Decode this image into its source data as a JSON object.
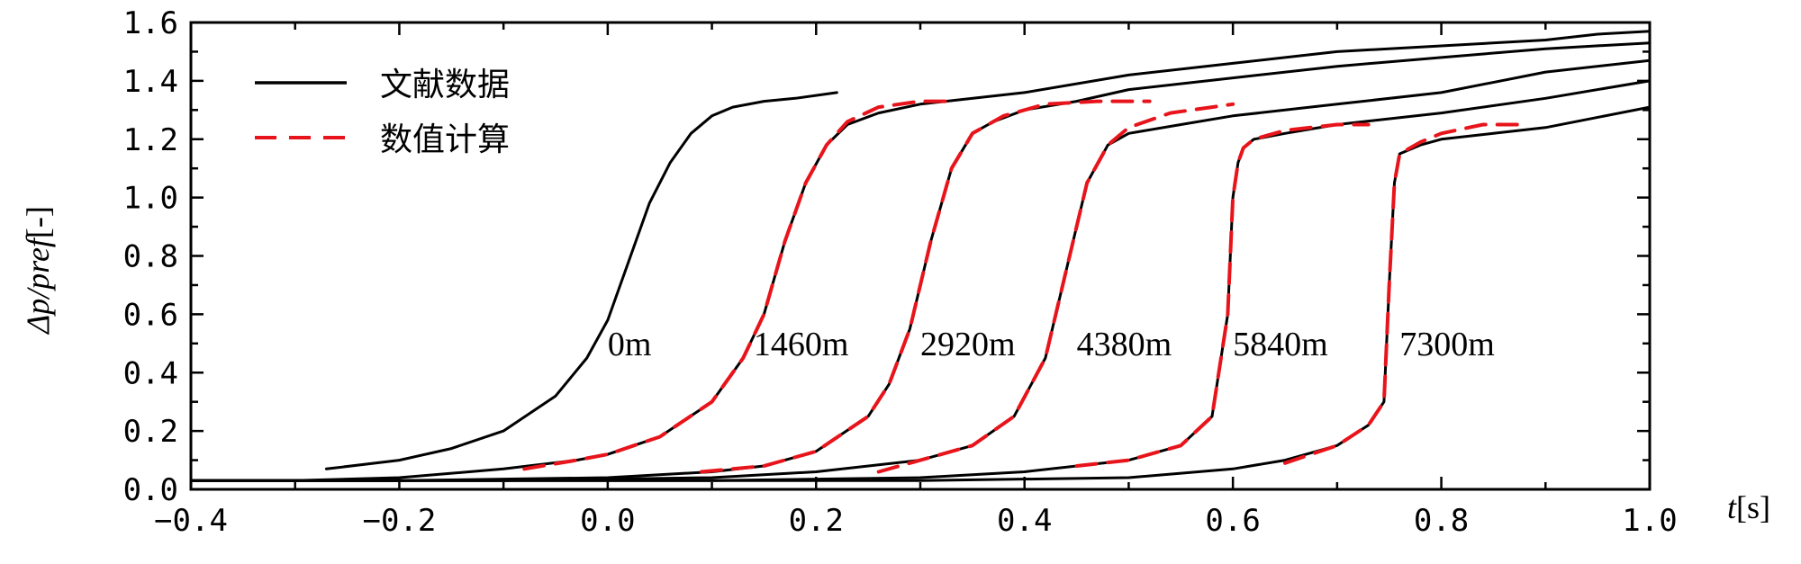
{
  "chart_data": {
    "type": "line",
    "title": "",
    "xlabel_var": "t",
    "xlabel_unit": "[s]",
    "ylabel_delta": "Δ",
    "ylabel_var": "p/pref",
    "ylabel_unit": "[-]",
    "xlim": [
      -0.4,
      1.0
    ],
    "ylim": [
      0.0,
      1.6
    ],
    "xticks": [
      -0.4,
      -0.2,
      0.0,
      0.2,
      0.4,
      0.6,
      0.8,
      1.0
    ],
    "xtick_labels": [
      "−0.4",
      "−0.2",
      "0.0",
      "0.2",
      "0.4",
      "0.6",
      "0.8",
      "1.0"
    ],
    "yticks": [
      0.0,
      0.2,
      0.4,
      0.6,
      0.8,
      1.0,
      1.2,
      1.4,
      1.6
    ],
    "ytick_labels": [
      "0.0",
      "0.2",
      "0.4",
      "0.6",
      "0.8",
      "1.0",
      "1.2",
      "1.4",
      "1.6"
    ],
    "legend_position": "top-left",
    "legend": [
      {
        "label": "文献数据",
        "style": "solid",
        "color": "#000000"
      },
      {
        "label": "数值计算",
        "style": "dashed",
        "color": "#e8141b"
      }
    ],
    "series": [
      {
        "name": "0m 文献数据",
        "style": "solid",
        "color": "#000000",
        "x": [
          -0.27,
          -0.2,
          -0.15,
          -0.1,
          -0.05,
          -0.02,
          0.0,
          0.02,
          0.04,
          0.06,
          0.08,
          0.1,
          0.12,
          0.15,
          0.18,
          0.22
        ],
        "y": [
          0.07,
          0.1,
          0.14,
          0.2,
          0.32,
          0.45,
          0.58,
          0.78,
          0.98,
          1.12,
          1.22,
          1.28,
          1.31,
          1.33,
          1.34,
          1.36
        ]
      },
      {
        "name": "1460m 文献数据",
        "style": "solid",
        "color": "#000000",
        "x": [
          -0.4,
          -0.3,
          -0.2,
          -0.1,
          -0.03,
          0.0,
          0.05,
          0.1,
          0.13,
          0.15,
          0.17,
          0.19,
          0.21,
          0.23,
          0.26,
          0.3,
          0.4,
          0.5,
          0.6,
          0.7,
          0.8,
          0.9,
          0.95,
          1.0
        ],
        "y": [
          0.03,
          0.03,
          0.04,
          0.07,
          0.1,
          0.12,
          0.18,
          0.3,
          0.45,
          0.6,
          0.85,
          1.05,
          1.18,
          1.25,
          1.29,
          1.32,
          1.36,
          1.42,
          1.46,
          1.5,
          1.52,
          1.54,
          1.56,
          1.57
        ]
      },
      {
        "name": "2920m 文献数据",
        "style": "solid",
        "color": "#000000",
        "x": [
          -0.4,
          -0.2,
          0.0,
          0.1,
          0.15,
          0.2,
          0.25,
          0.27,
          0.29,
          0.31,
          0.33,
          0.35,
          0.37,
          0.4,
          0.45,
          0.5,
          0.6,
          0.7,
          0.8,
          0.9,
          1.0
        ],
        "y": [
          0.03,
          0.03,
          0.04,
          0.06,
          0.08,
          0.13,
          0.25,
          0.36,
          0.55,
          0.85,
          1.1,
          1.22,
          1.26,
          1.3,
          1.33,
          1.37,
          1.41,
          1.45,
          1.48,
          1.51,
          1.53
        ]
      },
      {
        "name": "4380m 文献数据",
        "style": "solid",
        "color": "#000000",
        "x": [
          -0.4,
          -0.1,
          0.1,
          0.2,
          0.3,
          0.35,
          0.39,
          0.42,
          0.44,
          0.46,
          0.48,
          0.5,
          0.55,
          0.6,
          0.7,
          0.8,
          0.9,
          1.0
        ],
        "y": [
          0.03,
          0.03,
          0.04,
          0.06,
          0.1,
          0.15,
          0.25,
          0.45,
          0.75,
          1.05,
          1.18,
          1.22,
          1.25,
          1.28,
          1.32,
          1.36,
          1.43,
          1.47
        ]
      },
      {
        "name": "5840m 文献数据",
        "style": "solid",
        "color": "#000000",
        "x": [
          -0.4,
          0.1,
          0.3,
          0.4,
          0.5,
          0.55,
          0.58,
          0.595,
          0.6,
          0.605,
          0.61,
          0.62,
          0.65,
          0.7,
          0.8,
          0.9,
          1.0
        ],
        "y": [
          0.03,
          0.03,
          0.04,
          0.06,
          0.1,
          0.15,
          0.25,
          0.6,
          1.0,
          1.12,
          1.17,
          1.2,
          1.22,
          1.25,
          1.29,
          1.34,
          1.4
        ]
      },
      {
        "name": "7300m 文献数据",
        "style": "solid",
        "color": "#000000",
        "x": [
          -0.4,
          0.3,
          0.5,
          0.6,
          0.65,
          0.7,
          0.73,
          0.745,
          0.75,
          0.755,
          0.76,
          0.78,
          0.8,
          0.85,
          0.9,
          1.0
        ],
        "y": [
          0.03,
          0.03,
          0.04,
          0.07,
          0.1,
          0.15,
          0.22,
          0.3,
          0.7,
          1.05,
          1.15,
          1.18,
          1.2,
          1.22,
          1.24,
          1.31
        ]
      },
      {
        "name": "1460m 数值计算",
        "style": "dashed",
        "color": "#e8141b",
        "x": [
          -0.08,
          -0.03,
          0.0,
          0.05,
          0.1,
          0.13,
          0.15,
          0.17,
          0.19,
          0.21,
          0.23,
          0.26,
          0.3,
          0.33
        ],
        "y": [
          0.07,
          0.1,
          0.12,
          0.18,
          0.3,
          0.45,
          0.6,
          0.85,
          1.05,
          1.18,
          1.26,
          1.31,
          1.33,
          1.33
        ]
      },
      {
        "name": "2920m 数值计算",
        "style": "dashed",
        "color": "#e8141b",
        "x": [
          0.09,
          0.15,
          0.2,
          0.25,
          0.27,
          0.29,
          0.31,
          0.33,
          0.35,
          0.38,
          0.42,
          0.47,
          0.52
        ],
        "y": [
          0.06,
          0.08,
          0.13,
          0.25,
          0.36,
          0.55,
          0.85,
          1.1,
          1.22,
          1.28,
          1.32,
          1.33,
          1.33
        ]
      },
      {
        "name": "4380m 数值计算",
        "style": "dashed",
        "color": "#e8141b",
        "x": [
          0.26,
          0.3,
          0.35,
          0.39,
          0.42,
          0.44,
          0.46,
          0.48,
          0.5,
          0.54,
          0.58,
          0.6
        ],
        "y": [
          0.06,
          0.1,
          0.15,
          0.25,
          0.45,
          0.75,
          1.05,
          1.18,
          1.24,
          1.29,
          1.31,
          1.32
        ]
      },
      {
        "name": "5840m 数值计算",
        "style": "dashed",
        "color": "#e8141b",
        "x": [
          0.45,
          0.5,
          0.55,
          0.58,
          0.595,
          0.6,
          0.605,
          0.61,
          0.62,
          0.65,
          0.7,
          0.73
        ],
        "y": [
          0.08,
          0.1,
          0.15,
          0.25,
          0.6,
          1.0,
          1.12,
          1.17,
          1.2,
          1.23,
          1.25,
          1.25
        ]
      },
      {
        "name": "7300m 数值计算",
        "style": "dashed",
        "color": "#e8141b",
        "x": [
          0.65,
          0.7,
          0.73,
          0.745,
          0.75,
          0.755,
          0.76,
          0.78,
          0.8,
          0.84,
          0.88
        ],
        "y": [
          0.09,
          0.15,
          0.22,
          0.3,
          0.7,
          1.05,
          1.15,
          1.19,
          1.22,
          1.25,
          1.25
        ]
      }
    ],
    "annotations": [
      {
        "text": "0m",
        "x": 0.0,
        "y": 0.46
      },
      {
        "text": "1460m",
        "x": 0.14,
        "y": 0.46
      },
      {
        "text": "2920m",
        "x": 0.3,
        "y": 0.46
      },
      {
        "text": "4380m",
        "x": 0.45,
        "y": 0.46
      },
      {
        "text": "5840m",
        "x": 0.6,
        "y": 0.46
      },
      {
        "text": "7300m",
        "x": 0.76,
        "y": 0.46
      }
    ]
  }
}
